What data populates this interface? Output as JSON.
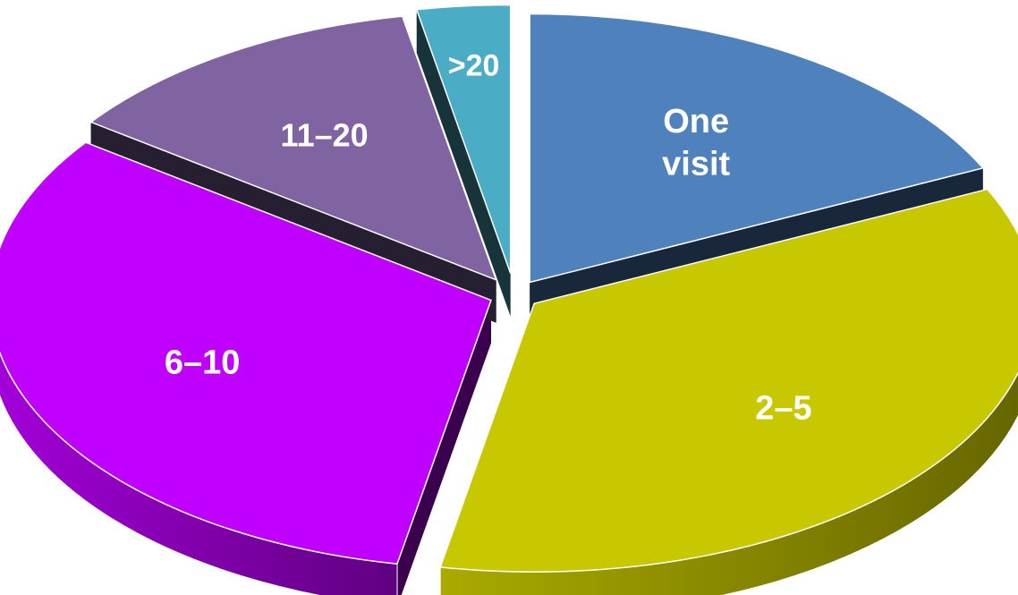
{
  "chart_data": {
    "type": "pie",
    "style": "3d-exploded",
    "categories": [
      "One visit",
      "2–5",
      "6–10",
      "11–20",
      ">20"
    ],
    "values": [
      18,
      35,
      32,
      12,
      3
    ],
    "unit": "%",
    "colors": [
      "#4f81bd",
      "#c8c800",
      "#c000ff",
      "#8064a2",
      "#4bacc6"
    ],
    "labels": [
      {
        "lines": [
          "One",
          "visit"
        ]
      },
      {
        "lines": [
          "2–5"
        ]
      },
      {
        "lines": [
          "6–10"
        ]
      },
      {
        "lines": [
          "11–20"
        ]
      },
      {
        "lines": [
          ">20"
        ]
      }
    ],
    "title": "",
    "legend": "none"
  }
}
